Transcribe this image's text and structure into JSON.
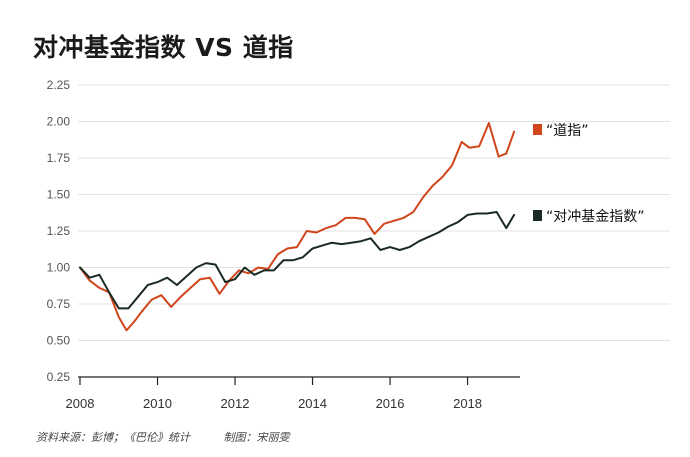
{
  "title": "对冲基金指数 VS 道指",
  "footer": {
    "source": "资料来源：彭博；《巴伦》统计",
    "credit": "制图：宋丽雯"
  },
  "colors": {
    "dow": "#d0451b",
    "hedge": "#1b2a24",
    "grid": "#e2e2e2",
    "axis": "#222222"
  },
  "chart_data": {
    "type": "line",
    "title": "对冲基金指数 VS 道指",
    "xlabel": "",
    "ylabel": "",
    "xlim": [
      2008,
      2019.25
    ],
    "ylim": [
      0.25,
      2.25
    ],
    "grid": "horizontal",
    "legend_placement": "right",
    "x_ticks": [
      2008,
      2010,
      2012,
      2014,
      2016,
      2018
    ],
    "y_ticks": [
      0.25,
      0.5,
      0.75,
      1.0,
      1.25,
      1.5,
      1.75,
      2.0,
      2.25
    ],
    "y_tick_labels": [
      "0.25",
      "0.50",
      "0.75",
      "1.00",
      "1.25",
      "1.50",
      "1.75",
      "2.00",
      "2.25"
    ],
    "series": [
      {
        "name": "“道指”",
        "color": "#d0451b",
        "x": [
          2008.0,
          2008.25,
          2008.5,
          2008.75,
          2009.0,
          2009.2,
          2009.4,
          2009.6,
          2009.85,
          2010.1,
          2010.35,
          2010.6,
          2010.85,
          2011.1,
          2011.35,
          2011.6,
          2011.85,
          2012.1,
          2012.35,
          2012.6,
          2012.85,
          2013.1,
          2013.35,
          2013.6,
          2013.85,
          2014.1,
          2014.35,
          2014.6,
          2014.85,
          2015.1,
          2015.35,
          2015.6,
          2015.85,
          2016.1,
          2016.35,
          2016.6,
          2016.85,
          2017.1,
          2017.35,
          2017.6,
          2017.85,
          2018.05,
          2018.3,
          2018.55,
          2018.8,
          2019.0,
          2019.2
        ],
        "values": [
          1.0,
          0.91,
          0.86,
          0.83,
          0.66,
          0.57,
          0.63,
          0.7,
          0.78,
          0.81,
          0.73,
          0.8,
          0.86,
          0.92,
          0.93,
          0.82,
          0.91,
          0.98,
          0.96,
          1.0,
          0.99,
          1.09,
          1.13,
          1.14,
          1.25,
          1.24,
          1.27,
          1.29,
          1.34,
          1.34,
          1.33,
          1.23,
          1.3,
          1.32,
          1.34,
          1.38,
          1.48,
          1.56,
          1.62,
          1.7,
          1.86,
          1.82,
          1.83,
          1.99,
          1.76,
          1.78,
          1.93
        ]
      },
      {
        "name": "“对冲基金指数”",
        "color": "#1b2a24",
        "x": [
          2008.0,
          2008.25,
          2008.5,
          2008.75,
          2009.0,
          2009.25,
          2009.5,
          2009.75,
          2010.0,
          2010.25,
          2010.5,
          2010.75,
          2011.0,
          2011.25,
          2011.5,
          2011.75,
          2012.0,
          2012.25,
          2012.5,
          2012.75,
          2013.0,
          2013.25,
          2013.5,
          2013.75,
          2014.0,
          2014.25,
          2014.5,
          2014.75,
          2015.0,
          2015.25,
          2015.5,
          2015.75,
          2016.0,
          2016.25,
          2016.5,
          2016.75,
          2017.0,
          2017.25,
          2017.5,
          2017.75,
          2018.0,
          2018.25,
          2018.5,
          2018.75,
          2019.0,
          2019.2
        ],
        "values": [
          1.0,
          0.93,
          0.95,
          0.83,
          0.72,
          0.72,
          0.8,
          0.88,
          0.9,
          0.93,
          0.88,
          0.94,
          1.0,
          1.03,
          1.02,
          0.9,
          0.92,
          1.0,
          0.95,
          0.98,
          0.98,
          1.05,
          1.05,
          1.07,
          1.13,
          1.15,
          1.17,
          1.16,
          1.17,
          1.18,
          1.2,
          1.12,
          1.14,
          1.12,
          1.14,
          1.18,
          1.21,
          1.24,
          1.28,
          1.31,
          1.36,
          1.37,
          1.37,
          1.38,
          1.27,
          1.36
        ]
      }
    ]
  }
}
